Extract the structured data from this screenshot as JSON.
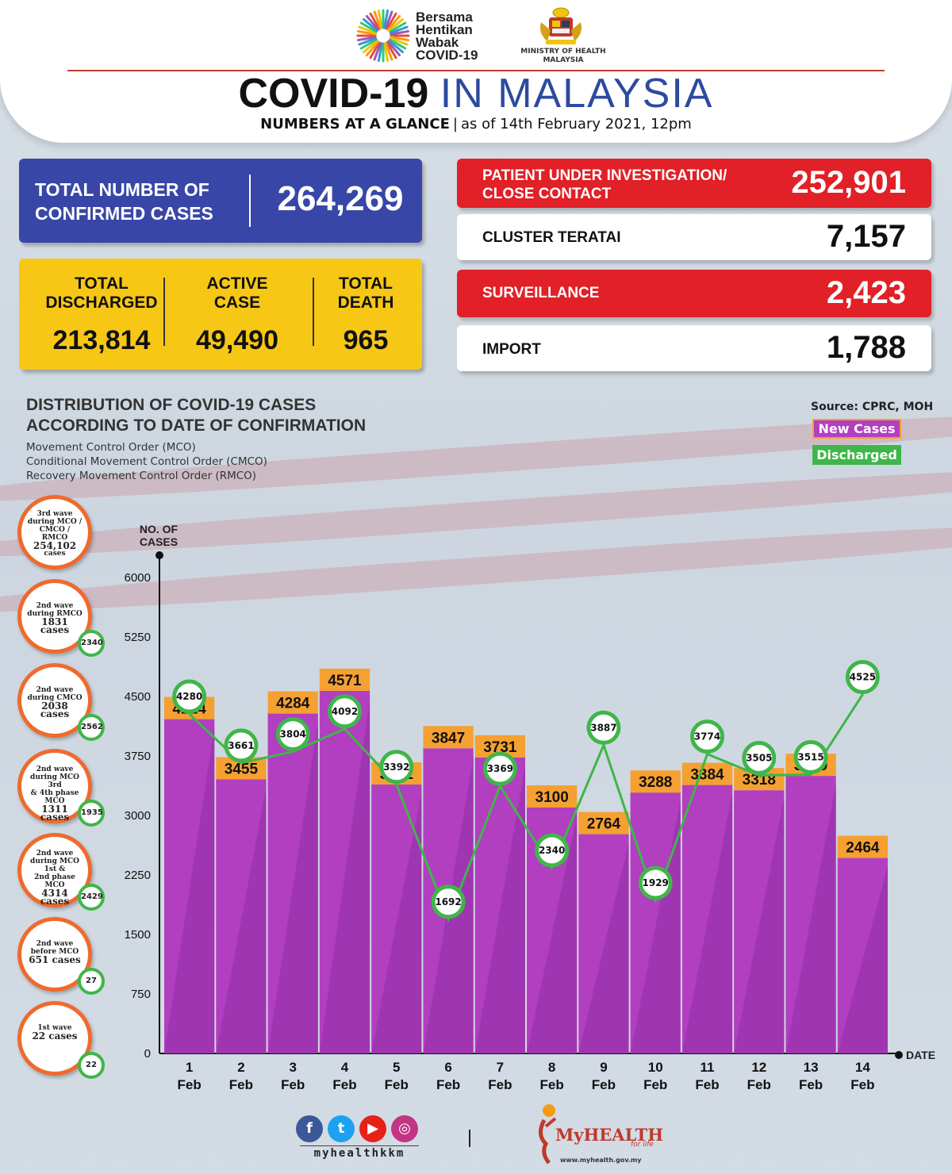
{
  "header": {
    "campaign_lines": [
      "Bersama",
      "Hentikan",
      "Wabak",
      "COVID-19"
    ],
    "ministry_lines": [
      "MINISTRY OF HEALTH",
      "MALAYSIA"
    ],
    "title_bold": "COVID-19",
    "title_rest": "IN MALAYSIA",
    "subtitle_bold": "NUMBERS AT A GLANCE",
    "subtitle_rest": "as of 14th February 2021, 12pm"
  },
  "stats": {
    "total_label_1": "TOTAL NUMBER OF",
    "total_label_2": "CONFIRMED CASES",
    "total_value": "264,269",
    "discharged_label_1": "TOTAL",
    "discharged_label_2": "DISCHARGED",
    "discharged_value": "213,814",
    "active_label_1": "ACTIVE",
    "active_label_2": "CASE",
    "active_value": "49,490",
    "death_label_1": "TOTAL",
    "death_label_2": "DEATH",
    "death_value": "965",
    "pui_label_1": "PATIENT UNDER INVESTIGATION/",
    "pui_label_2": "CLOSE CONTACT",
    "pui_value": "252,901",
    "cluster_label": "CLUSTER TERATAI",
    "cluster_value": "7,157",
    "surveillance_label": "SURVEILLANCE",
    "surveillance_value": "2,423",
    "import_label": "IMPORT",
    "import_value": "1,788"
  },
  "distribution": {
    "title_1": "DISTRIBUTION OF COVID-19 CASES",
    "title_2": "ACCORDING TO DATE OF CONFIRMATION",
    "mco_1": "Movement Control Order (MCO)",
    "mco_2": "Conditional Movement Control Order (CMCO)",
    "mco_3": "Recovery Movement Control Order (RMCO)",
    "source": "Source: CPRC, MOH"
  },
  "waves": [
    {
      "l1": "3rd wave",
      "l2": "during MCO /",
      "l3": "CMCO / RMCO",
      "num": "254,102",
      "l5": "cases",
      "badge": ""
    },
    {
      "l1": "2nd wave",
      "l2": "during RMCO",
      "l3": "",
      "num": "1831 cases",
      "l5": "",
      "badge": "2340"
    },
    {
      "l1": "2nd wave",
      "l2": "during CMCO",
      "l3": "",
      "num": "2038 cases",
      "l5": "",
      "badge": "2562"
    },
    {
      "l1": "2nd wave",
      "l2": "during MCO 3rd",
      "l3": "& 4th phase MCO",
      "num": "1311 cases",
      "l5": "",
      "badge": "1935"
    },
    {
      "l1": "2nd wave",
      "l2": "during MCO 1st &",
      "l3": "2nd phase MCO",
      "num": "4314 cases",
      "l5": "",
      "badge": "2429"
    },
    {
      "l1": "2nd wave",
      "l2": "before MCO",
      "l3": "",
      "num": "651 cases",
      "l5": "",
      "badge": "27"
    },
    {
      "l1": "1st wave",
      "l2": "",
      "l3": "",
      "num": "22 cases",
      "l5": "",
      "badge": "22"
    }
  ],
  "chart_data": {
    "type": "bar",
    "title": "DISTRIBUTION OF COVID-19 CASES ACCORDING TO DATE OF CONFIRMATION",
    "ylabel": "NO. OF CASES",
    "xlabel": "DATE",
    "ylim": [
      0,
      6000
    ],
    "yticks": [
      0,
      750,
      1500,
      2250,
      3000,
      3750,
      4500,
      5250,
      6000
    ],
    "categories": [
      "1 Feb",
      "2 Feb",
      "3 Feb",
      "4 Feb",
      "5 Feb",
      "6 Feb",
      "7 Feb",
      "8 Feb",
      "9 Feb",
      "10 Feb",
      "11 Feb",
      "12 Feb",
      "13 Feb",
      "14 Feb"
    ],
    "series": [
      {
        "name": "New Cases",
        "kind": "bar",
        "color": "#b13fc0",
        "label_bg": "#f5a030",
        "values": [
          4214,
          3455,
          4284,
          4571,
          3391,
          3847,
          3731,
          3100,
          2764,
          3288,
          3384,
          3318,
          3499,
          2464
        ]
      },
      {
        "name": "Discharged",
        "kind": "line",
        "color": "#3fb649",
        "values": [
          4280,
          3661,
          3804,
          4092,
          3392,
          1692,
          3369,
          2340,
          3887,
          1929,
          3774,
          3505,
          3515,
          4525
        ]
      }
    ],
    "legend": "top-right"
  },
  "footer": {
    "handle": "myhealthkkm",
    "brand": "MyHEALTH",
    "tagline": "for life",
    "url": "www.myhealth.gov.my"
  },
  "colors": {
    "blue": "#3847a7",
    "yellow": "#f7c716",
    "red": "#e12027",
    "purple": "#b13fc0",
    "orange": "#f5a030",
    "green": "#3fb649"
  }
}
